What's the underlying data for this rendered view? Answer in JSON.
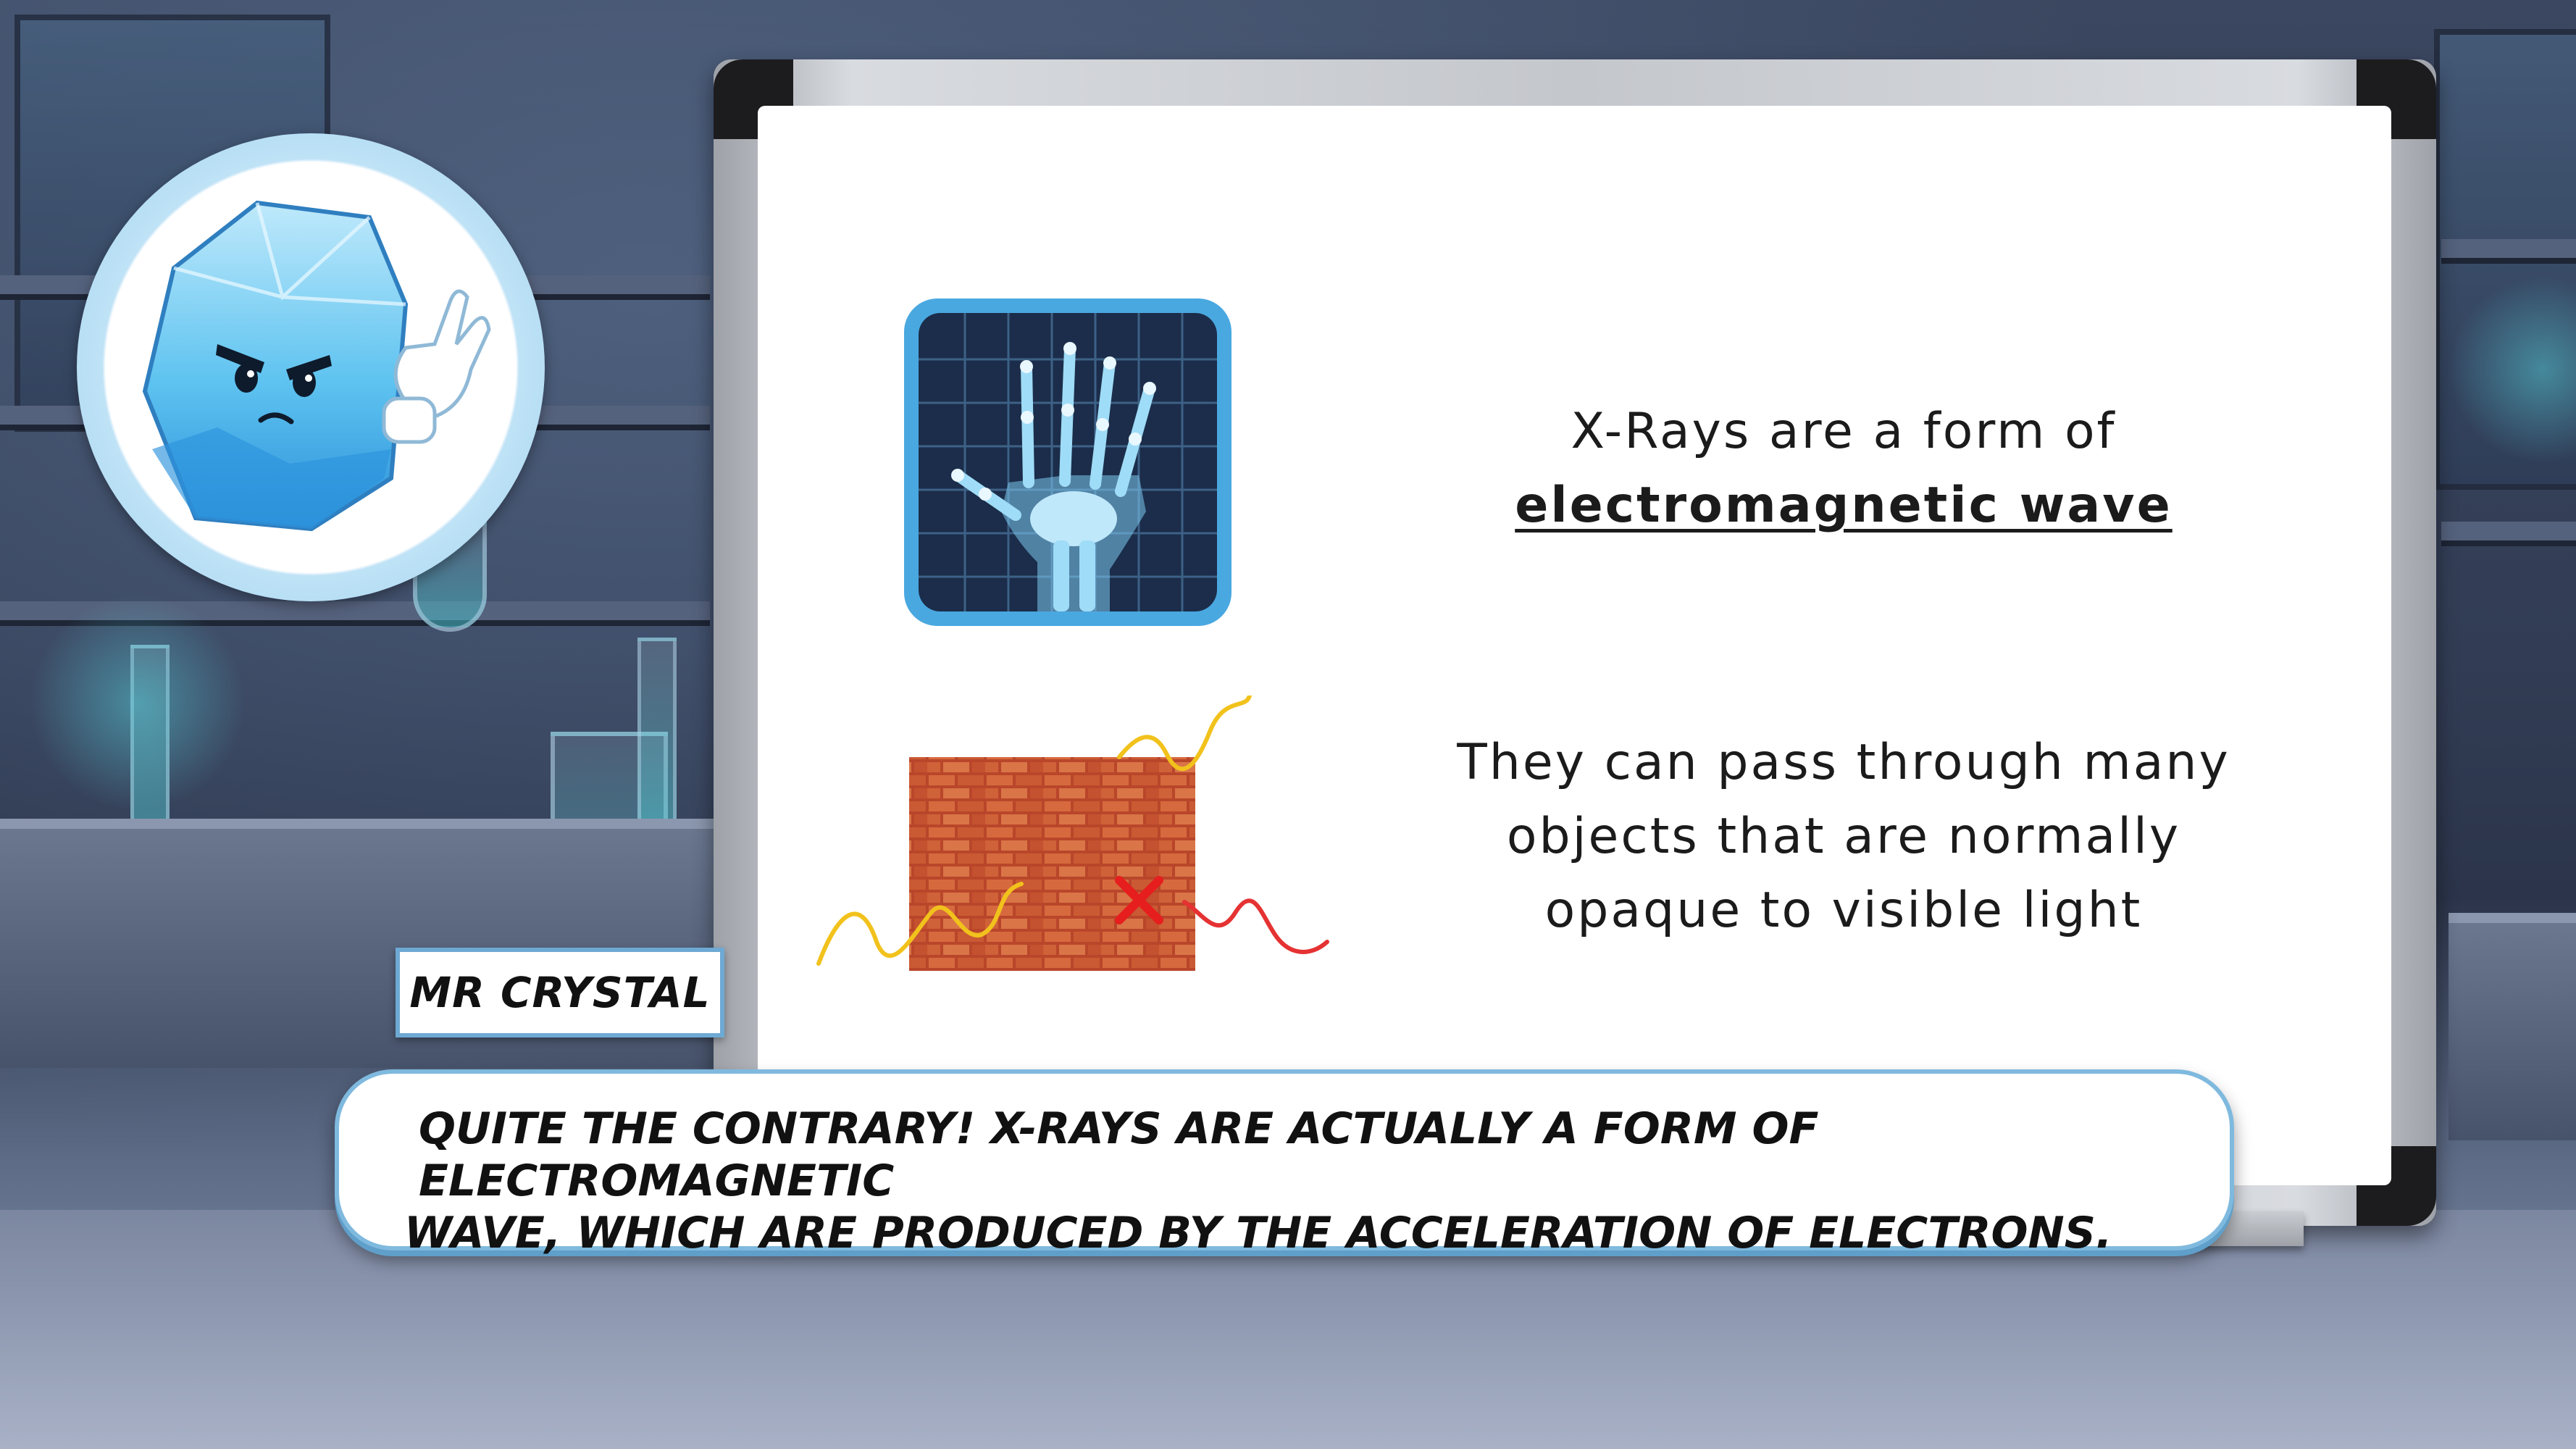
{
  "speaker": {
    "name": "MR CRYSTAL"
  },
  "dialogue": {
    "line1": "QUITE THE CONTRARY! X-RAYS ARE ACTUALLY A FORM OF ELECTROMAGNETIC",
    "line2": "WAVE, WHICH ARE PRODUCED BY THE ACCELERATION OF ELECTRONS."
  },
  "board": {
    "fact1": {
      "line1": "X-Rays are a form of",
      "emphasis": "electromagnetic wave",
      "icon": "xray-hand-icon"
    },
    "fact2": {
      "lines": [
        "They can pass through many",
        "objects that are normally",
        "opaque to visible light"
      ],
      "icon": "brick-wall-wave-icon"
    }
  },
  "colors": {
    "accent": "#4aa8e0",
    "dialogue_border": "#7fb9de",
    "wave_yellow": "#f2c21c",
    "wave_red": "#e53232",
    "brick": "#c8552e"
  }
}
